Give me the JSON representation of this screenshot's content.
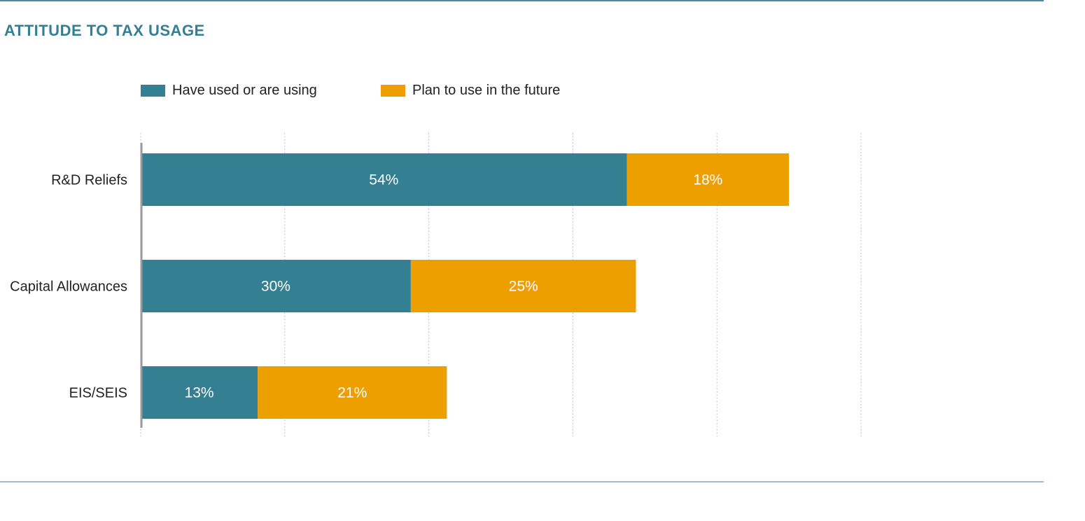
{
  "title": "ATTITUDE TO TAX USAGE",
  "legend": [
    {
      "label": "Have used or are using",
      "color": "#357f93"
    },
    {
      "label": "Plan to use in the future",
      "color": "#ee9f00"
    }
  ],
  "chart_data": {
    "type": "bar",
    "orientation": "horizontal",
    "stacked": true,
    "categories": [
      "R&D Reliefs",
      "Capital Allowances",
      "EIS/SEIS"
    ],
    "series": [
      {
        "name": "Have used or are using",
        "values": [
          54,
          30,
          13
        ],
        "labels": [
          "54%",
          "30%",
          "13%"
        ],
        "color": "#357f93"
      },
      {
        "name": "Plan to use in the future",
        "values": [
          18,
          25,
          21
        ],
        "labels": [
          "18%",
          "25%",
          "21%"
        ],
        "color": "#ee9f00"
      }
    ],
    "xlim": [
      0,
      80
    ],
    "grid": true,
    "legend_position": "top-left"
  }
}
